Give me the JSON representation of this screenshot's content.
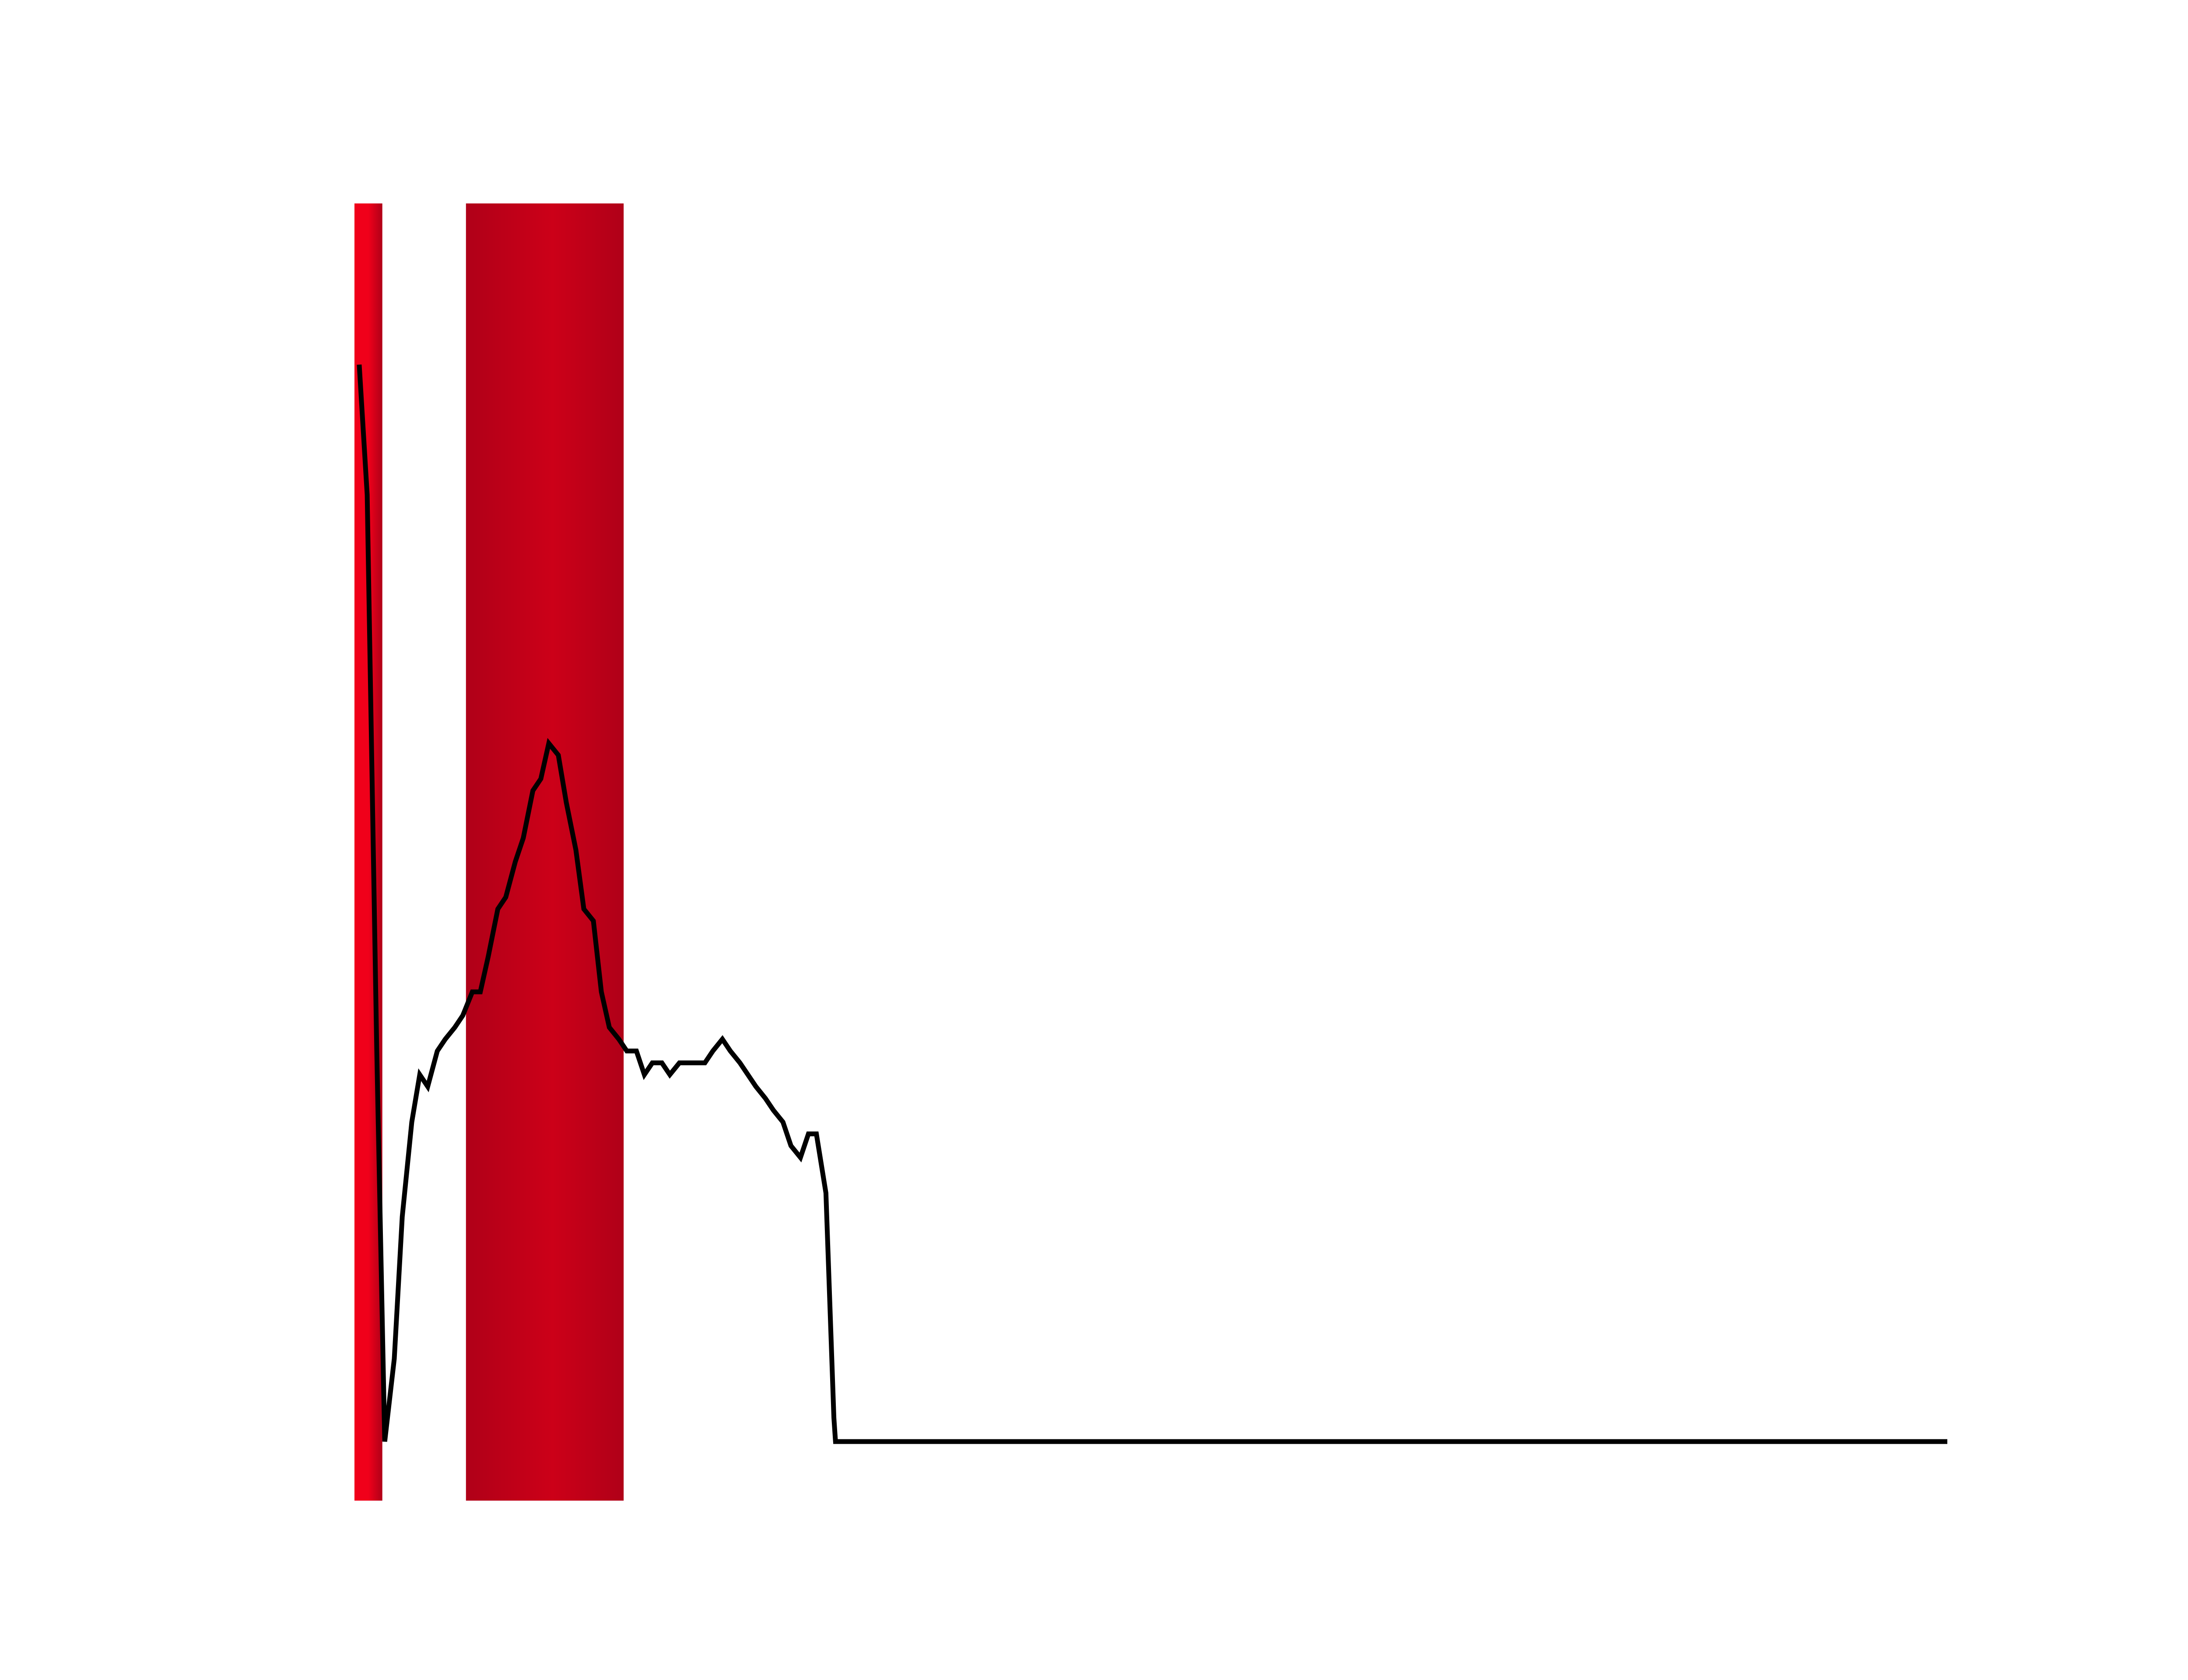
{
  "chart_data": {
    "type": "line",
    "title": "",
    "xlabel": "",
    "ylabel": "",
    "axes_visible": false,
    "grid": false,
    "legend": "none",
    "xlim": [
      0,
      100
    ],
    "ylim": [
      0,
      1
    ],
    "colors": {
      "line": "#000000",
      "band_light": "#f0001a",
      "band_dark": "#b00018",
      "band_mid": "#cc0018"
    },
    "bands": [
      {
        "name": "band-1",
        "x_start": 0.0,
        "x_end": 1.75
      },
      {
        "name": "band-2",
        "x_start": 7.0,
        "x_end": 16.9
      }
    ],
    "series": [
      {
        "x": [
          0.3,
          0.8,
          1.4,
          1.9,
          2.5,
          3.0,
          3.6,
          4.1,
          4.6,
          5.2,
          5.7,
          6.3,
          6.8,
          7.4,
          7.9,
          8.4,
          9.0,
          9.5,
          10.1,
          10.6,
          11.2,
          11.7,
          12.2,
          12.8,
          13.3,
          13.9,
          14.4,
          15.0,
          15.5,
          16.0,
          16.6,
          17.1,
          17.7,
          18.2,
          18.7,
          19.3,
          19.8,
          20.4,
          20.9,
          21.5,
          22.0,
          22.5,
          23.1,
          23.6,
          24.2,
          24.7,
          25.2,
          25.8,
          26.3,
          26.9,
          27.4,
          28.0,
          28.5,
          29.0,
          29.6,
          30.1,
          30.2,
          40,
          60,
          80,
          100
        ],
        "y": [
          0.91,
          0.8,
          0.33,
          0.0,
          0.07,
          0.19,
          0.27,
          0.31,
          0.3,
          0.33,
          0.34,
          0.35,
          0.36,
          0.38,
          0.38,
          0.41,
          0.45,
          0.46,
          0.49,
          0.51,
          0.55,
          0.56,
          0.59,
          0.58,
          0.54,
          0.5,
          0.45,
          0.44,
          0.38,
          0.35,
          0.34,
          0.33,
          0.33,
          0.31,
          0.32,
          0.32,
          0.31,
          0.32,
          0.32,
          0.32,
          0.32,
          0.33,
          0.34,
          0.33,
          0.32,
          0.31,
          0.3,
          0.29,
          0.28,
          0.27,
          0.25,
          0.24,
          0.26,
          0.26,
          0.21,
          0.02,
          0.0,
          0.0,
          0.0,
          0.0,
          0.0
        ]
      }
    ]
  }
}
